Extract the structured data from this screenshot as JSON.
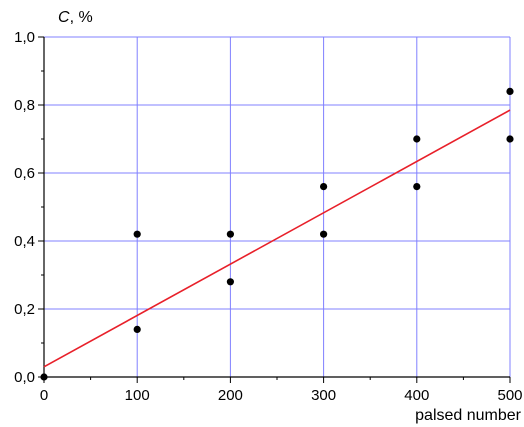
{
  "chart_data": {
    "type": "scatter",
    "ylabel_symbol": "C",
    "ylabel_unit": ", %",
    "xlabel": "palsed number",
    "xlim": [
      0,
      500
    ],
    "ylim": [
      0,
      1.0
    ],
    "x_ticks": [
      0,
      100,
      200,
      300,
      400,
      500
    ],
    "x_tick_labels": [
      "0",
      "100",
      "200",
      "300",
      "400",
      "500"
    ],
    "y_ticks": [
      0,
      0.2,
      0.4,
      0.6,
      0.8,
      1.0
    ],
    "y_tick_labels": [
      "0,0",
      "0,2",
      "0,4",
      "0,6",
      "0,8",
      "1,0"
    ],
    "grid": true,
    "grid_color": "#8080ff",
    "point_color": "#000000",
    "line_color": "#e8202a",
    "points": [
      {
        "x": 0,
        "y": 0.0
      },
      {
        "x": 100,
        "y": 0.42
      },
      {
        "x": 100,
        "y": 0.14
      },
      {
        "x": 200,
        "y": 0.42
      },
      {
        "x": 200,
        "y": 0.28
      },
      {
        "x": 300,
        "y": 0.56
      },
      {
        "x": 300,
        "y": 0.42
      },
      {
        "x": 400,
        "y": 0.7
      },
      {
        "x": 400,
        "y": 0.56
      },
      {
        "x": 500,
        "y": 0.84
      },
      {
        "x": 500,
        "y": 0.7
      }
    ],
    "fit_line": {
      "x": [
        0,
        500
      ],
      "y": [
        0.03,
        0.785
      ]
    }
  }
}
